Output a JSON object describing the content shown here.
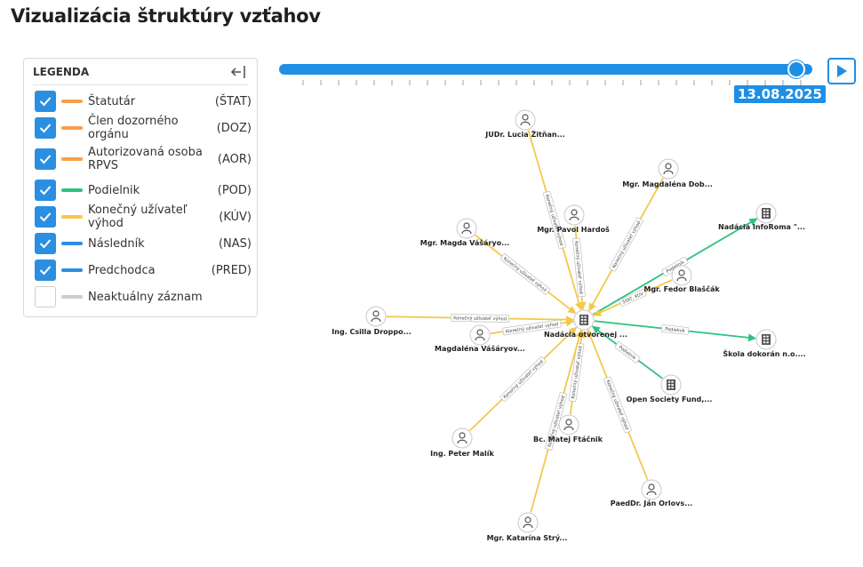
{
  "page": {
    "title": "Vizualizácia štruktúry vzťahov"
  },
  "legend": {
    "title": "LEGENDA",
    "items": [
      {
        "label": "Štatutár",
        "abbr": "(ŠTAT)",
        "color": "#f5a04a",
        "checked": true
      },
      {
        "label": "Člen dozorného orgánu",
        "abbr": "(DOZ)",
        "color": "#f5a04a",
        "checked": true
      },
      {
        "label": "Autorizovaná osoba RPVS",
        "abbr": "(AOR)",
        "color": "#f5a04a",
        "checked": true
      },
      {
        "label": "Podielnik",
        "abbr": "(POD)",
        "color": "#2ec27e",
        "checked": true
      },
      {
        "label": "Konečný užívateľ výhod",
        "abbr": "(KÚV)",
        "color": "#f2c94c",
        "checked": true
      },
      {
        "label": "Následník",
        "abbr": "(NAS)",
        "color": "#2d8fe0",
        "checked": true
      },
      {
        "label": "Predchodca",
        "abbr": "(PRED)",
        "color": "#2d8fe0",
        "checked": true
      },
      {
        "label": "Neaktuálny záznam",
        "abbr": "",
        "color": "#cccccc",
        "checked": false
      }
    ]
  },
  "timeline": {
    "date": "13.08.2025",
    "position": 0.98,
    "tick_count": 29
  },
  "graph": {
    "center": {
      "label": "Nadácia otvorenej ...",
      "type": "org"
    },
    "nodes": [
      {
        "label": "JUDr. Lucia Žitňan...",
        "type": "person"
      },
      {
        "label": "Mgr. Magdaléna Dob...",
        "type": "person"
      },
      {
        "label": "Nadácia InfoRoma \"...",
        "type": "org"
      },
      {
        "label": "Mgr. Pavol Hardoš",
        "type": "person"
      },
      {
        "label": "Mgr. Magda Vášáryo...",
        "type": "person"
      },
      {
        "label": "Mgr. Fedor Blaščák",
        "type": "person"
      },
      {
        "label": "Ing. Csilla Droppo...",
        "type": "person"
      },
      {
        "label": "Magdaléna Vášáryov...",
        "type": "person"
      },
      {
        "label": "Škola dokorán n.o....",
        "type": "org"
      },
      {
        "label": "Open Society Fund,...",
        "type": "org"
      },
      {
        "label": "Ing. Peter Malík",
        "type": "person"
      },
      {
        "label": "Bc. Matej Ftáčnik",
        "type": "person"
      },
      {
        "label": "PaedDr. Ján Orlovs...",
        "type": "person"
      },
      {
        "label": "Mgr. Katarína Strý...",
        "type": "person"
      }
    ],
    "edge_labels": {
      "kuv": "Konečný užívateľ výhod",
      "pod": "Podielnik",
      "stat": "ŠTAT, KÚV"
    }
  }
}
